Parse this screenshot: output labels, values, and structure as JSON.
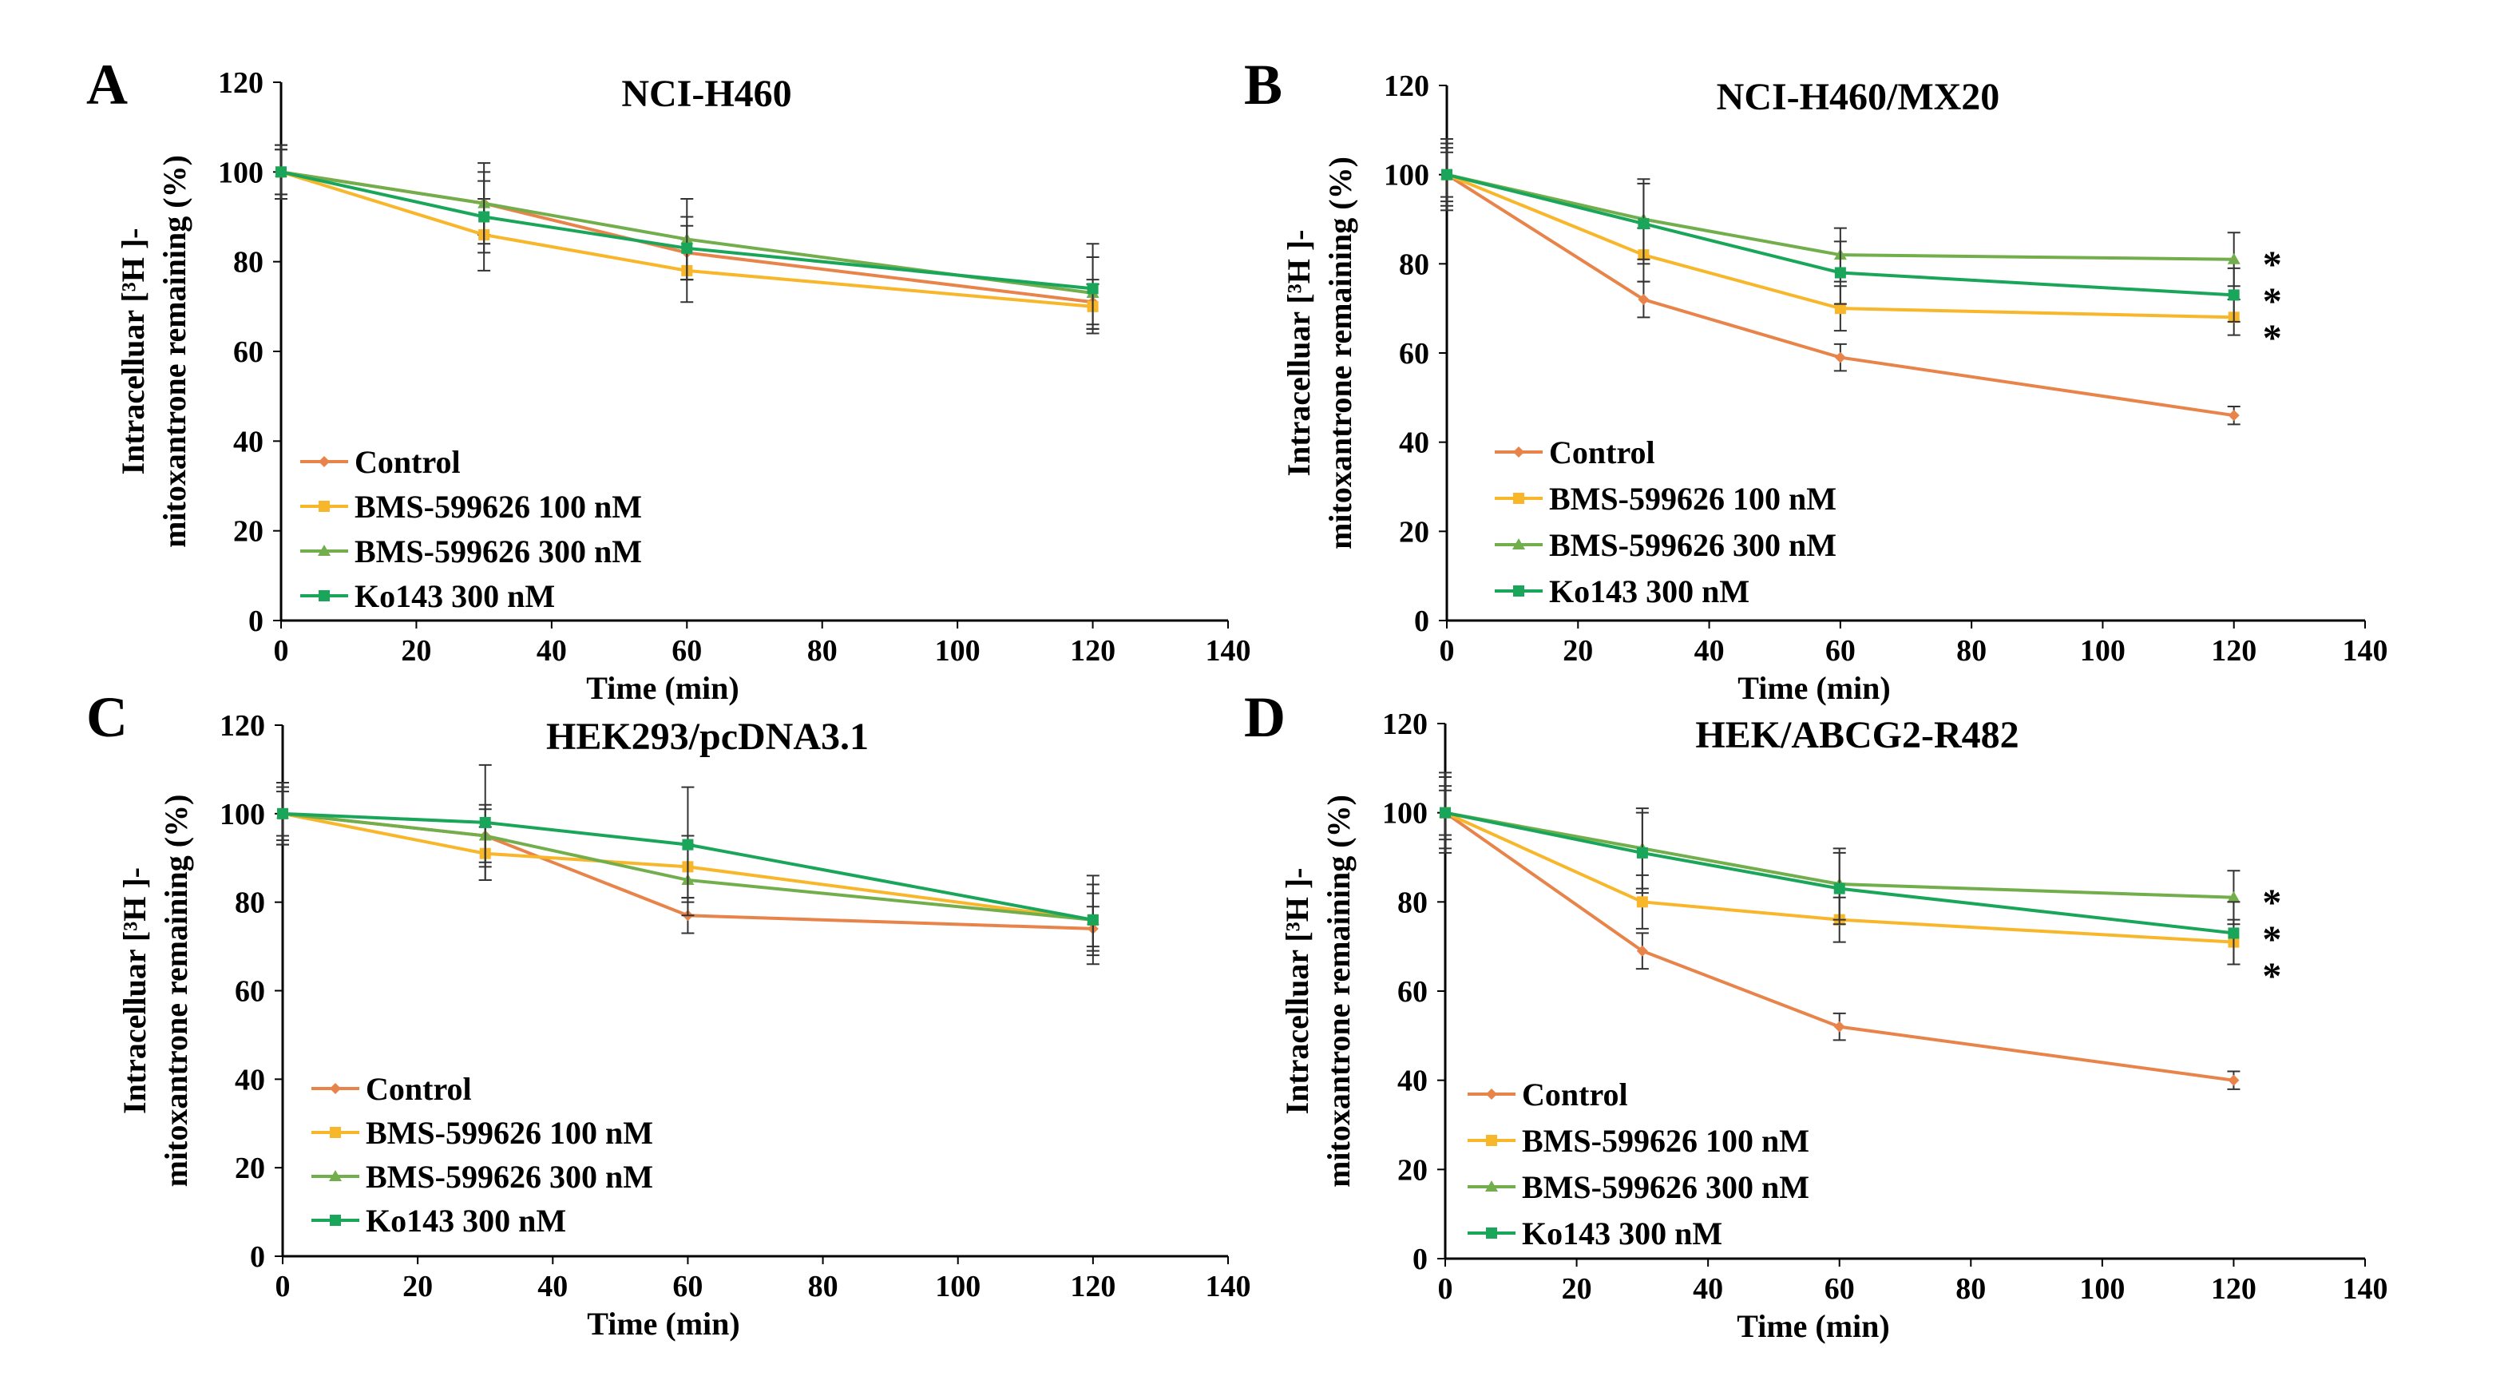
{
  "figure": {
    "legend": [
      "Control",
      "BMS-599626 100 nM",
      "BMS-599626 300 nM",
      "Ko143 300 nM"
    ]
  },
  "colors": {
    "Control": "#E8834A",
    "BMS-599626 100 nM": "#F8B62A",
    "BMS-599626 300 nM": "#72AE4C",
    "Ko143 300 nM": "#1AA65A"
  },
  "chart_data": [
    {
      "panel": "A",
      "type": "line",
      "title": "NCI-H460",
      "xlabel": "Time (min)",
      "ylabel_line1": "Intracelluar [³H ]-",
      "ylabel_line2": "mitoxantrone remaining  (%)",
      "x": [
        0,
        30,
        60,
        120
      ],
      "xlim": [
        0,
        140
      ],
      "ylim": [
        0,
        120
      ],
      "xticks": [
        0,
        20,
        40,
        60,
        80,
        100,
        120,
        140
      ],
      "yticks": [
        0,
        20,
        40,
        60,
        80,
        100,
        120
      ],
      "series": [
        {
          "name": "Control",
          "values": [
            100,
            93,
            82,
            71
          ],
          "errors": [
            5,
            7,
            6,
            5
          ]
        },
        {
          "name": "BMS-599626 100 nM",
          "values": [
            100,
            86,
            78,
            70
          ],
          "errors": [
            5,
            8,
            7,
            5
          ]
        },
        {
          "name": "BMS-599626 300 nM",
          "values": [
            100,
            93,
            85,
            73
          ],
          "errors": [
            6,
            9,
            9,
            8
          ]
        },
        {
          "name": "Ko143 300 nM",
          "values": [
            100,
            90,
            83,
            74
          ],
          "errors": [
            6,
            8,
            7,
            10
          ]
        }
      ],
      "significance": []
    },
    {
      "panel": "B",
      "type": "line",
      "title": "NCI-H460/MX20",
      "xlabel": "Time (min)",
      "ylabel_line1": "Intracelluar [³H ]-",
      "ylabel_line2": "mitoxantrone remaining (%)",
      "x": [
        0,
        30,
        60,
        120
      ],
      "xlim": [
        0,
        140
      ],
      "ylim": [
        0,
        120
      ],
      "xticks": [
        0,
        20,
        40,
        60,
        80,
        100,
        120,
        140
      ],
      "yticks": [
        0,
        20,
        40,
        60,
        80,
        100,
        120
      ],
      "series": [
        {
          "name": "Control",
          "values": [
            100,
            72,
            59,
            46
          ],
          "errors": [
            5,
            4,
            3,
            2
          ]
        },
        {
          "name": "BMS-599626 100 nM",
          "values": [
            100,
            82,
            70,
            68
          ],
          "errors": [
            6,
            6,
            5,
            4
          ]
        },
        {
          "name": "BMS-599626 300 nM",
          "values": [
            100,
            90,
            82,
            81
          ],
          "errors": [
            8,
            9,
            6,
            6
          ]
        },
        {
          "name": "Ko143 300 nM",
          "values": [
            100,
            89,
            78,
            73
          ],
          "errors": [
            7,
            9,
            7,
            6
          ]
        }
      ],
      "significance": [
        "*",
        "*",
        "*"
      ]
    },
    {
      "panel": "C",
      "type": "line",
      "title": "HEK293/pcDNA3.1",
      "xlabel": "Time (min)",
      "ylabel_line1": "Intracelluar [³H ]-",
      "ylabel_line2": "mitoxantrone remaining  (%)",
      "x": [
        0,
        30,
        60,
        120
      ],
      "xlim": [
        0,
        140
      ],
      "ylim": [
        0,
        120
      ],
      "xticks": [
        0,
        20,
        40,
        60,
        80,
        100,
        120,
        140
      ],
      "yticks": [
        0,
        20,
        40,
        60,
        80,
        100,
        120
      ],
      "series": [
        {
          "name": "Control",
          "values": [
            100,
            95,
            77,
            74
          ],
          "errors": [
            5,
            6,
            4,
            5
          ]
        },
        {
          "name": "BMS-599626 100 nM",
          "values": [
            100,
            91,
            88,
            76
          ],
          "errors": [
            6,
            6,
            7,
            6
          ]
        },
        {
          "name": "BMS-599626 300 nM",
          "values": [
            100,
            95,
            85,
            76
          ],
          "errors": [
            7,
            7,
            8,
            10
          ]
        },
        {
          "name": "Ko143 300 nM",
          "values": [
            100,
            98,
            93,
            76
          ],
          "errors": [
            7,
            13,
            13,
            8
          ]
        }
      ],
      "significance": []
    },
    {
      "panel": "D",
      "type": "line",
      "title": "HEK/ABCG2-R482",
      "xlabel": "Time (min)",
      "ylabel_line1": "Intracelluar [³H ]-",
      "ylabel_line2": "mitoxantrone remaining (%)",
      "x": [
        0,
        30,
        60,
        120
      ],
      "xlim": [
        0,
        140
      ],
      "ylim": [
        0,
        120
      ],
      "xticks": [
        0,
        20,
        40,
        60,
        80,
        100,
        120,
        140
      ],
      "yticks": [
        0,
        20,
        40,
        60,
        80,
        100,
        120
      ],
      "series": [
        {
          "name": "Control",
          "values": [
            100,
            69,
            52,
            40
          ],
          "errors": [
            5,
            4,
            3,
            2
          ]
        },
        {
          "name": "BMS-599626 100 nM",
          "values": [
            100,
            80,
            76,
            71
          ],
          "errors": [
            6,
            6,
            5,
            5
          ]
        },
        {
          "name": "BMS-599626 300 nM",
          "values": [
            100,
            92,
            84,
            81
          ],
          "errors": [
            8,
            9,
            8,
            6
          ]
        },
        {
          "name": "Ko143 300 nM",
          "values": [
            100,
            91,
            83,
            73
          ],
          "errors": [
            9,
            9,
            8,
            7
          ]
        }
      ],
      "significance": [
        "*",
        "*",
        "*"
      ]
    }
  ]
}
